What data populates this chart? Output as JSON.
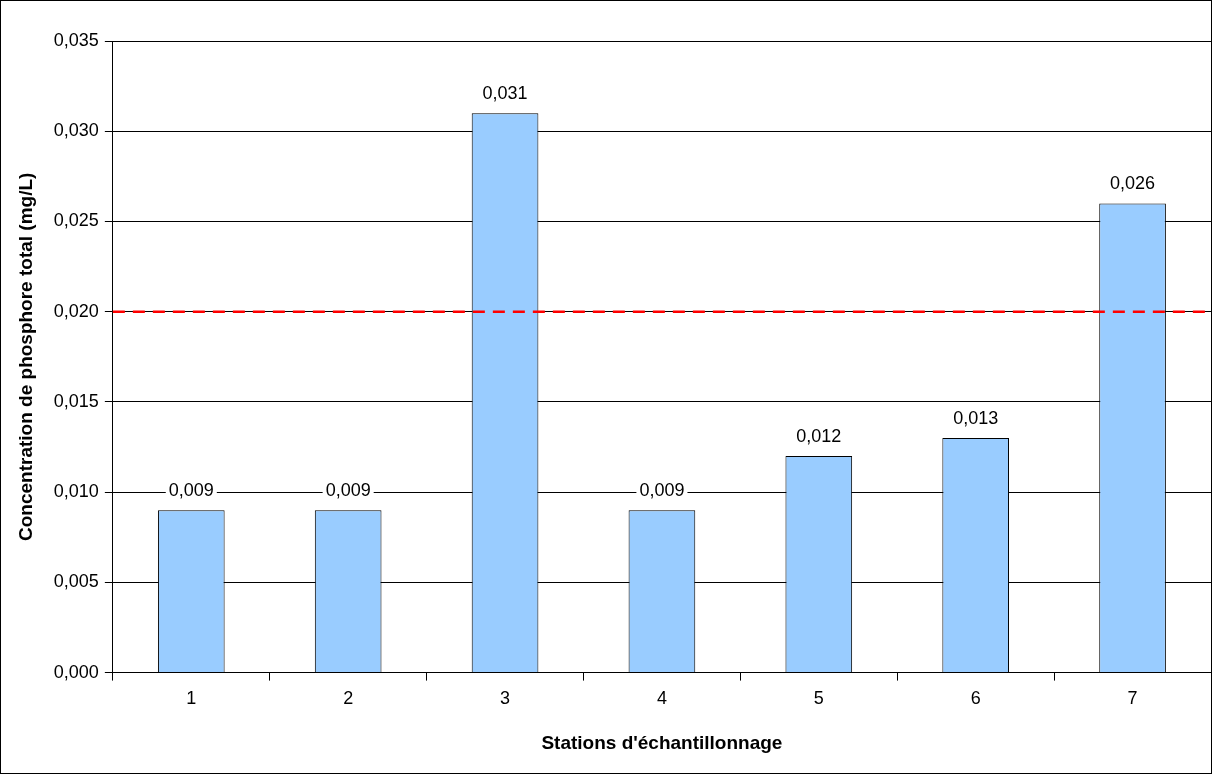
{
  "chart_data": {
    "type": "bar",
    "xlabel": "Stations d'échantillonnage",
    "ylabel": "Concentration de phosphore total (mg/L)",
    "categories": [
      "1",
      "2",
      "3",
      "4",
      "5",
      "6",
      "7"
    ],
    "values": [
      0.009,
      0.009,
      0.031,
      0.009,
      0.012,
      0.013,
      0.026
    ],
    "value_labels": [
      "0,009",
      "0,009",
      "0,031",
      "0,009",
      "0,012",
      "0,013",
      "0,026"
    ],
    "color": "#99ccff",
    "ylim": [
      0,
      0.035
    ],
    "yticks": [
      {
        "value": 0,
        "label": "0,000"
      },
      {
        "value": 0.005,
        "label": "0,005"
      },
      {
        "value": 0.01,
        "label": "0,010"
      },
      {
        "value": 0.015,
        "label": "0,015"
      },
      {
        "value": 0.02,
        "label": "0,020"
      },
      {
        "value": 0.025,
        "label": "0,025"
      },
      {
        "value": 0.03,
        "label": "0,030"
      },
      {
        "value": 0.035,
        "label": "0,035"
      }
    ],
    "ref_lines": [
      {
        "axis": "y",
        "value": 0.02,
        "color": "#ff0000",
        "line_style": "dashed"
      }
    ],
    "grid": "y",
    "legend": false
  }
}
